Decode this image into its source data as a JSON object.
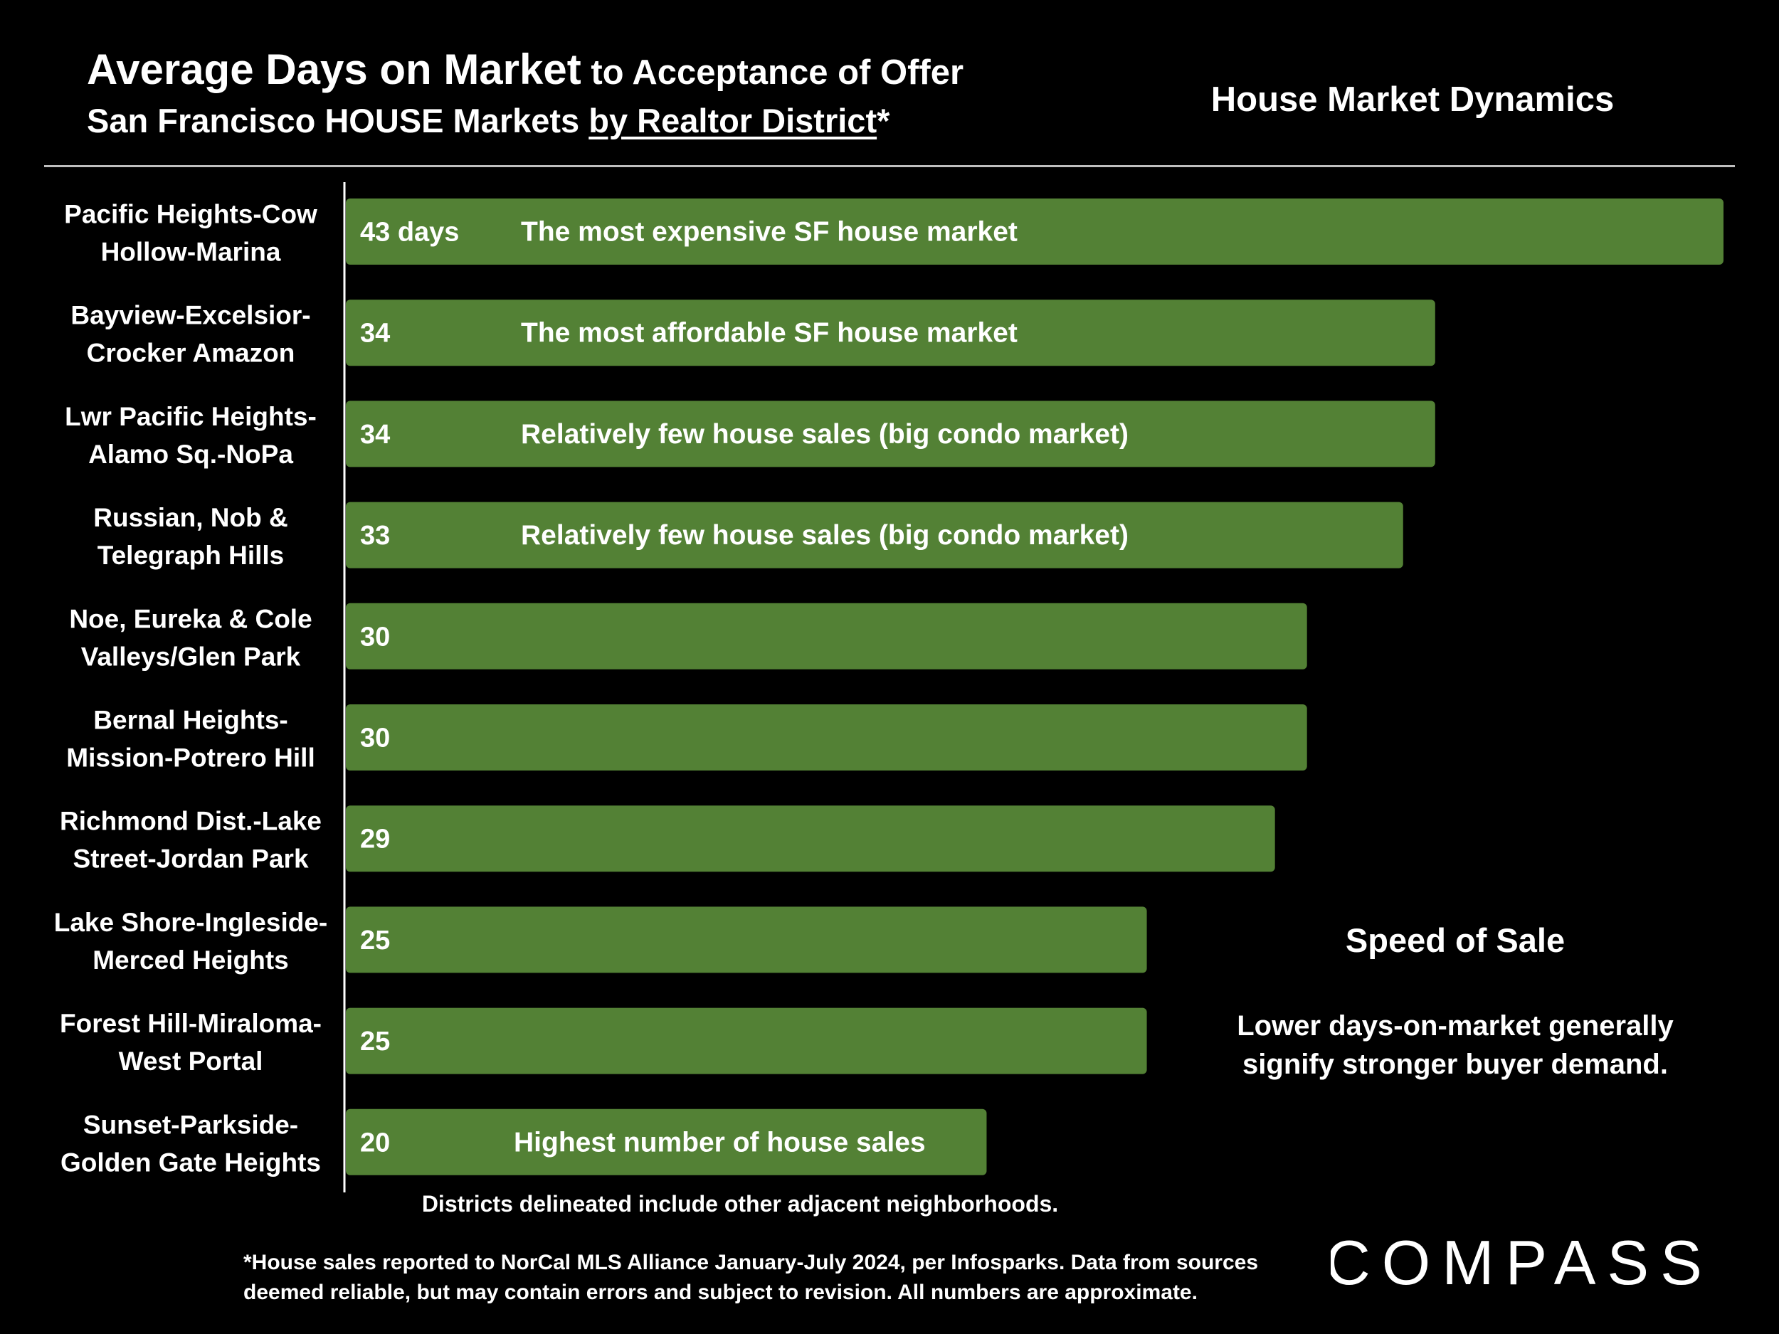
{
  "header": {
    "title_main": "Average Days on Market",
    "title_sub": " to Acceptance of Offer",
    "subtitle_part1": "San Francisco HOUSE Markets ",
    "subtitle_part2": "by Realtor District",
    "subtitle_part3": "*",
    "corner_label": "House Market Dynamics"
  },
  "chart_data": {
    "type": "bar",
    "orientation": "horizontal",
    "categories": [
      [
        "Pacific Heights-Cow",
        "Hollow-Marina"
      ],
      [
        "Bayview-Excelsior-",
        "Crocker Amazon"
      ],
      [
        "Lwr Pacific Heights-",
        "Alamo Sq.-NoPa"
      ],
      [
        "Russian, Nob &",
        "Telegraph Hills"
      ],
      [
        "Noe, Eureka & Cole",
        "Valleys/Glen Park"
      ],
      [
        "Bernal Heights-",
        "Mission-Potrero Hill"
      ],
      [
        "Richmond Dist.-Lake",
        "Street-Jordan Park"
      ],
      [
        "Lake Shore-Ingleside-",
        "Merced Heights"
      ],
      [
        "Forest Hill-Miraloma-",
        "West Portal"
      ],
      [
        "Sunset-Parkside-",
        "Golden Gate Heights"
      ]
    ],
    "values": [
      43,
      34,
      34,
      33,
      30,
      30,
      29,
      25,
      25,
      20
    ],
    "value_labels": [
      "43 days",
      "34",
      "34",
      "33",
      "30",
      "30",
      "29",
      "25",
      "25",
      "20"
    ],
    "annotations": [
      "The most expensive SF house market",
      "The most affordable SF house market",
      "Relatively few house sales (big condo market)",
      "Relatively few house sales (big condo market)",
      "",
      "",
      "",
      "",
      "",
      "Highest number of house sales"
    ],
    "xlim": [
      0,
      43
    ],
    "bar_color": "#538135",
    "grid": false,
    "legend": "none"
  },
  "side_note": {
    "title": "Speed of Sale",
    "body": "Lower days-on-market generally signify stronger buyer demand."
  },
  "notes": {
    "districts": "Districts delineated include other adjacent neighborhoods.",
    "footnote": "*House sales reported to NorCal MLS Alliance January-July 2024, per Infosparks. Data from sources deemed reliable, but may contain errors and subject to revision. All numbers are approximate."
  },
  "logo": {
    "text": "COMPASS"
  },
  "colors": {
    "background": "#000000",
    "text": "#ffffff",
    "bar": "#538135"
  }
}
